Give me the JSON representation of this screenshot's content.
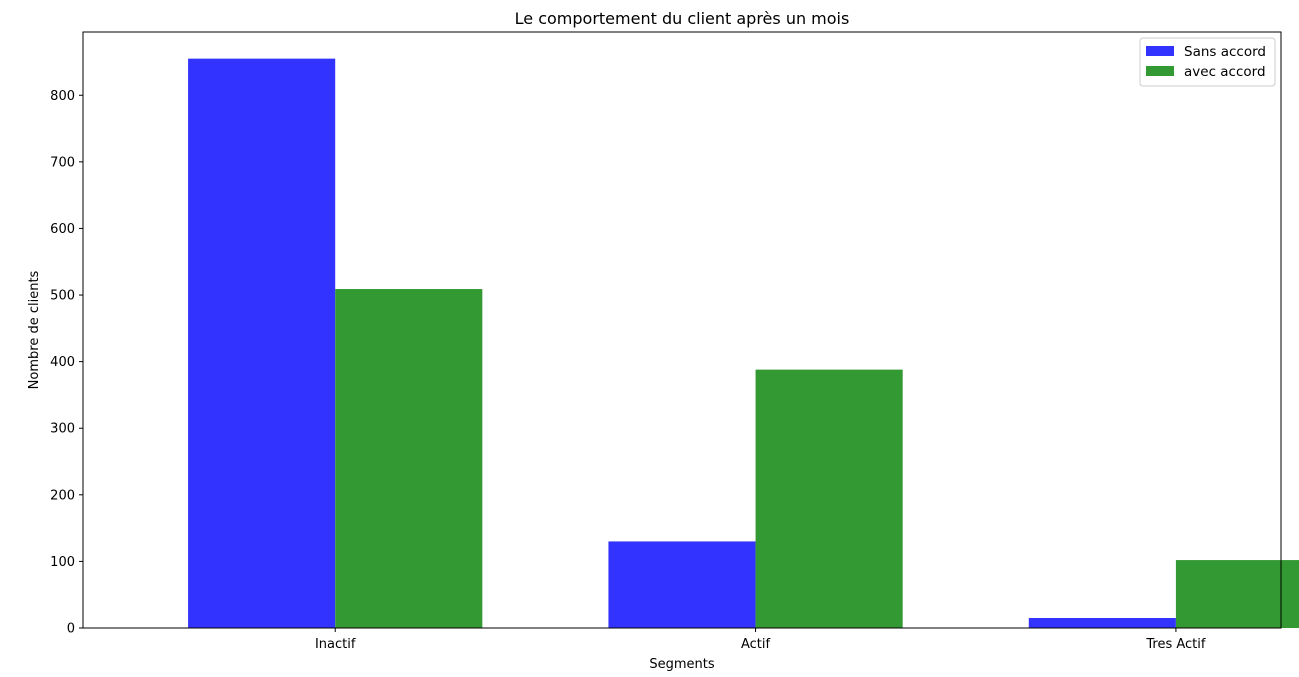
{
  "chart_data": {
    "type": "bar",
    "title": "Le comportement du client après un mois",
    "xlabel": "Segments",
    "ylabel": "Nombre de clients",
    "categories": [
      "Inactif",
      "Actif",
      "Tres Actif"
    ],
    "series": [
      {
        "name": "Sans accord",
        "color": "#3333ff",
        "values": [
          855,
          130,
          15
        ]
      },
      {
        "name": "avec accord",
        "color": "#339933",
        "values": [
          509,
          388,
          102
        ]
      }
    ],
    "ylim": [
      0,
      895
    ],
    "yticks": [
      0,
      100,
      200,
      300,
      400,
      500,
      600,
      700,
      800
    ],
    "grid": false,
    "legend_position": "top-right"
  }
}
